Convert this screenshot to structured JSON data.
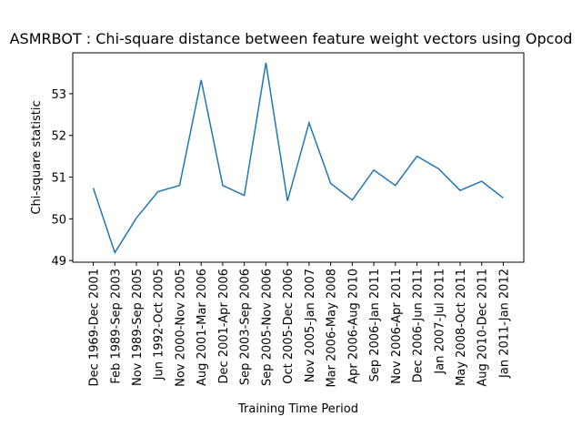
{
  "chart_data": {
    "type": "line",
    "title": "ASMRBOT : Chi-square distance between feature weight vectors using Opcod",
    "x_label": "Training Time Period",
    "y_label": "Chi-square statistic",
    "categories": [
      "Dec 1969-Dec 2001",
      "Feb 1989-Sep 2003",
      "Nov 1989-Sep 2005",
      "Jun 1992-Oct 2005",
      "Nov 2000-Nov 2005",
      "Aug 2001-Mar 2006",
      "Dec 2001-Apr 2006",
      "Sep 2003-Sep 2006",
      "Sep 2005-Nov 2006",
      "Oct 2005-Dec 2006",
      "Nov 2005-Jan 2007",
      "Mar 2006-May 2008",
      "Apr 2006-Aug 2010",
      "Sep 2006-Jan 2011",
      "Nov 2006-Apr 2011",
      "Dec 2006-Jun 2011",
      "Jan 2007-Jul 2011",
      "May 2008-Oct 2011",
      "Aug 2010-Dec 2011",
      "Jan 2011-Jan 2012"
    ],
    "values": [
      50.74,
      49.19,
      50.02,
      50.65,
      50.8,
      53.33,
      50.8,
      50.56,
      53.74,
      50.43,
      52.3,
      50.85,
      50.45,
      51.17,
      50.8,
      51.5,
      51.2,
      50.68,
      50.9,
      50.5
    ],
    "color": "#1f77b4",
    "ylim": [
      48.96,
      53.98
    ],
    "yticks": [
      49,
      50,
      51,
      52,
      53
    ]
  }
}
